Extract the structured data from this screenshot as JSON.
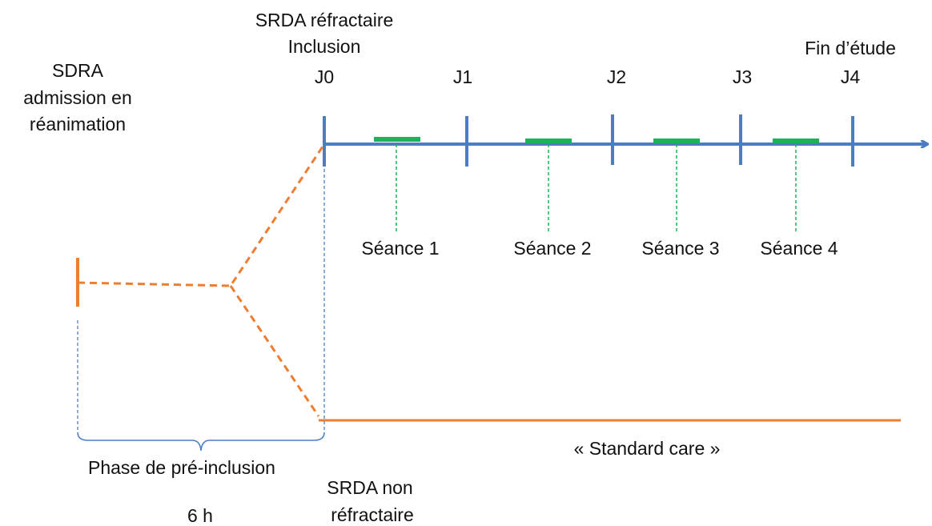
{
  "left_label": [
    "SDRA",
    "admission en",
    "réanimation"
  ],
  "inclusion_label": [
    "SRDA réfractaire",
    "Inclusion"
  ],
  "end_label": "Fin d’étude",
  "days": [
    "J0",
    "J1",
    "J2",
    "J3",
    "J4"
  ],
  "sessions": [
    "Séance 1",
    "Séance 2",
    "Séance 3",
    "Séance 4"
  ],
  "phase_label": "Phase de pré-inclusion",
  "phase_duration": "6 h",
  "standard_care": "« Standard care »",
  "non_refractory_label": [
    "SRDA non",
    "réfractaire"
  ]
}
